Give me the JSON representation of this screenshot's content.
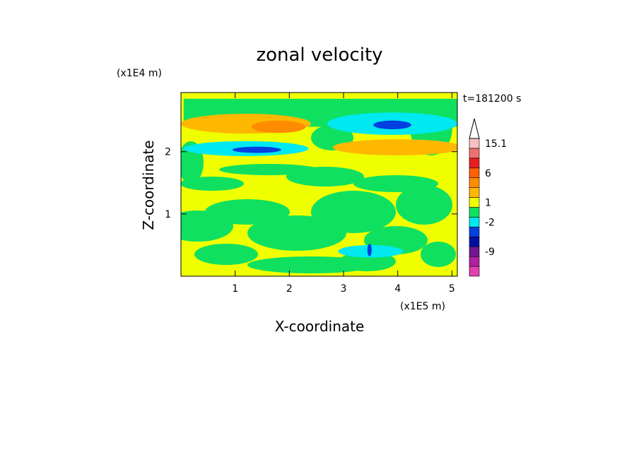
{
  "chart_data": {
    "type": "heatmap",
    "title": "zonal velocity",
    "xlabel": "X-coordinate",
    "ylabel": "Z-coordinate",
    "x_unit": "(x1E5 m)",
    "y_unit": "(x1E4 m)",
    "time_label": "t=181200 s",
    "xlim": [
      0,
      5.1
    ],
    "ylim": [
      0,
      2.95
    ],
    "x_ticks": [
      "1",
      "2",
      "3",
      "4",
      "5"
    ],
    "y_ticks": [
      "1",
      "2"
    ],
    "colorbar": {
      "labels": [
        "15.1",
        "6",
        "1",
        "-2",
        "-9"
      ],
      "levels": [
        {
          "color": "#e040b0"
        },
        {
          "color": "#b020a0"
        },
        {
          "color": "#701890"
        },
        {
          "color": "#0010a0"
        },
        {
          "color": "#0040e0"
        },
        {
          "color": "#00e8f0"
        },
        {
          "color": "#10e060"
        },
        {
          "color": "#f0ff00"
        },
        {
          "color": "#ffb800"
        },
        {
          "color": "#ff8c00"
        },
        {
          "color": "#ff6000"
        },
        {
          "color": "#e82020"
        },
        {
          "color": "#f07070"
        },
        {
          "color": "#f8c0c0"
        }
      ]
    },
    "field_regions": [
      {
        "type": "band",
        "x": [
          0.05,
          5.1
        ],
        "y": [
          2.4,
          2.85
        ],
        "level": "green"
      },
      {
        "type": "blob",
        "cx": 1.2,
        "cy": 2.45,
        "rx": 1.2,
        "ry": 0.16,
        "level": "orange-light"
      },
      {
        "type": "blob",
        "cx": 1.8,
        "cy": 2.4,
        "rx": 0.5,
        "ry": 0.1,
        "level": "orange"
      },
      {
        "type": "blob",
        "cx": 1.2,
        "cy": 2.05,
        "rx": 1.15,
        "ry": 0.12,
        "level": "cyan"
      },
      {
        "type": "blob",
        "cx": 1.4,
        "cy": 2.03,
        "rx": 0.45,
        "ry": 0.05,
        "level": "blue"
      },
      {
        "type": "blob",
        "cx": 3.9,
        "cy": 2.45,
        "rx": 1.2,
        "ry": 0.18,
        "level": "cyan"
      },
      {
        "type": "blob",
        "cx": 3.9,
        "cy": 2.43,
        "rx": 0.35,
        "ry": 0.07,
        "level": "blue"
      },
      {
        "type": "blob",
        "cx": 4.0,
        "cy": 2.07,
        "rx": 1.2,
        "ry": 0.13,
        "level": "orange-light"
      },
      {
        "type": "blob",
        "cx": 3.5,
        "cy": 0.4,
        "rx": 0.6,
        "ry": 0.1,
        "level": "cyan"
      },
      {
        "type": "blob",
        "cx": 3.48,
        "cy": 0.42,
        "rx": 0.04,
        "ry": 0.1,
        "level": "blue"
      }
    ]
  }
}
